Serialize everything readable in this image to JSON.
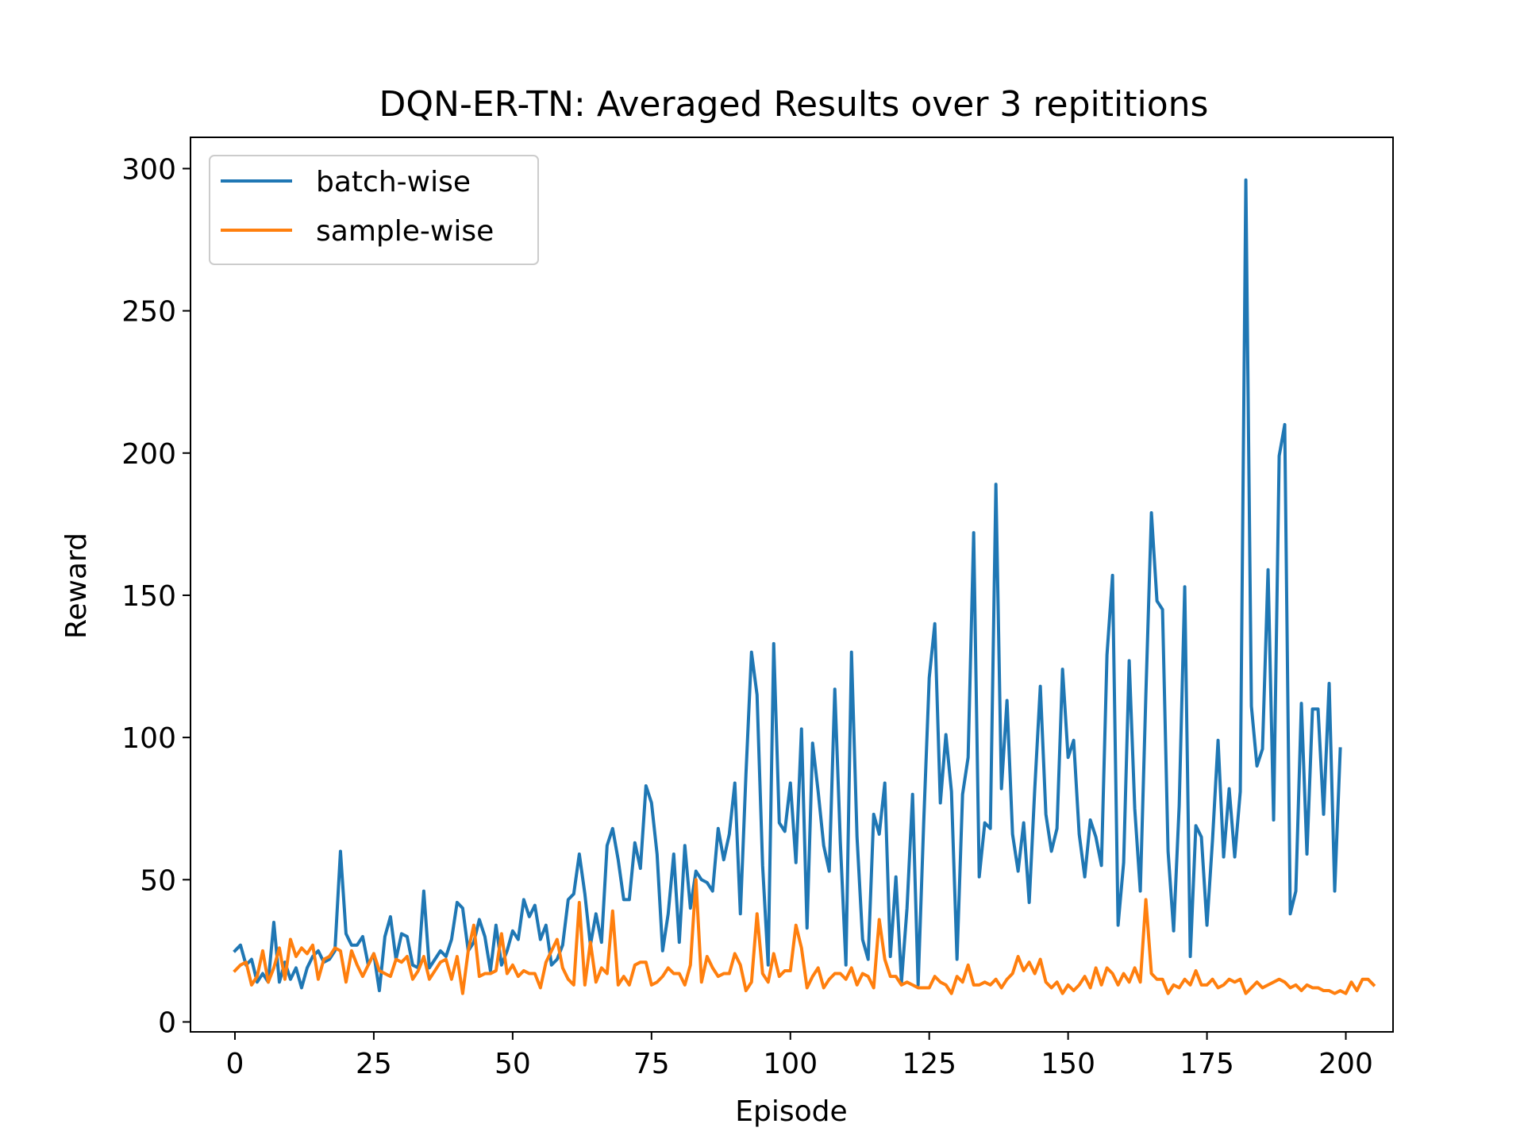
{
  "chart_data": {
    "type": "line",
    "title": "DQN-ER-TN: Averaged Results over 3 repititions",
    "xlabel": "Episode",
    "ylabel": "Reward",
    "xlim": [
      -8,
      208.5
    ],
    "ylim": [
      -3.5,
      311
    ],
    "xticks": [
      0,
      25,
      50,
      75,
      100,
      125,
      150,
      175,
      200
    ],
    "yticks": [
      0,
      50,
      100,
      150,
      200,
      250,
      300
    ],
    "grid": false,
    "legend_position": "top-left",
    "series": [
      {
        "name": "batch-wise",
        "color": "#1f77b4",
        "values": [
          25,
          27,
          20,
          22,
          14,
          17,
          14,
          35,
          14,
          21,
          15,
          19,
          12,
          19,
          23,
          25,
          21,
          22,
          25,
          60,
          31,
          27,
          27,
          30,
          20,
          24,
          11,
          30,
          37,
          22,
          31,
          30,
          20,
          19,
          46,
          19,
          22,
          25,
          23,
          29,
          42,
          40,
          25,
          28,
          36,
          30,
          18,
          34,
          20,
          25,
          32,
          29,
          43,
          37,
          41,
          29,
          34,
          20,
          22,
          27,
          43,
          45,
          59,
          45,
          27,
          38,
          28,
          62,
          68,
          57,
          43,
          43,
          63,
          54,
          83,
          77,
          59,
          25,
          38,
          59,
          28,
          62,
          40,
          53,
          50,
          49,
          46,
          68,
          57,
          66,
          84,
          38,
          87,
          130,
          115,
          55,
          20,
          133,
          70,
          67,
          84,
          56,
          103,
          33,
          98,
          81,
          62,
          53,
          117,
          63,
          20,
          130,
          65,
          29,
          22,
          73,
          66,
          84,
          23,
          51,
          14,
          40,
          80,
          13,
          70,
          121,
          140,
          77,
          101,
          81,
          22,
          80,
          93,
          172,
          51,
          70,
          68,
          189,
          82,
          113,
          66,
          53,
          70,
          42,
          82,
          118,
          73,
          60,
          68,
          124,
          93,
          99,
          66,
          51,
          71,
          65,
          55,
          129,
          157,
          34,
          56,
          127,
          75,
          46,
          115,
          179,
          148,
          145,
          60,
          32,
          76,
          153,
          23,
          69,
          65,
          34,
          64,
          99,
          58,
          82,
          58,
          81,
          296,
          111,
          90,
          96,
          159,
          71,
          199,
          210,
          38,
          46,
          112,
          59,
          110,
          110,
          73,
          119,
          46,
          96
        ]
      },
      {
        "name": "sample-wise",
        "color": "#ff7f0e",
        "values": [
          18,
          20,
          21,
          13,
          16,
          25,
          14,
          19,
          26,
          15,
          29,
          23,
          26,
          24,
          27,
          15,
          22,
          23,
          26,
          25,
          14,
          25,
          20,
          16,
          20,
          24,
          18,
          17,
          16,
          22,
          21,
          23,
          15,
          18,
          23,
          15,
          18,
          21,
          22,
          15,
          23,
          10,
          25,
          34,
          16,
          17,
          17,
          18,
          31,
          17,
          20,
          16,
          18,
          17,
          17,
          12,
          21,
          25,
          29,
          19,
          15,
          13,
          42,
          13,
          28,
          14,
          19,
          17,
          39,
          13,
          16,
          13,
          20,
          21,
          21,
          13,
          14,
          16,
          19,
          17,
          17,
          13,
          20,
          50,
          14,
          23,
          19,
          16,
          17,
          17,
          24,
          20,
          11,
          14,
          38,
          17,
          14,
          24,
          16,
          18,
          18,
          34,
          26,
          12,
          16,
          19,
          12,
          15,
          17,
          17,
          15,
          19,
          13,
          17,
          16,
          12,
          36,
          22,
          16,
          16,
          13,
          14,
          13,
          12,
          12,
          12,
          16,
          14,
          13,
          10,
          16,
          14,
          20,
          13,
          13,
          14,
          13,
          15,
          12,
          15,
          17,
          23,
          18,
          21,
          17,
          22,
          14,
          12,
          14,
          10,
          13,
          11,
          13,
          16,
          12,
          19,
          13,
          19,
          17,
          13,
          17,
          14,
          19,
          14,
          43,
          17,
          15,
          15,
          10,
          13,
          12,
          15,
          13,
          18,
          13,
          13,
          15,
          12,
          13,
          15,
          14,
          15,
          10,
          12,
          14,
          12,
          13,
          14,
          15,
          14,
          12,
          13,
          11,
          13,
          12,
          12,
          11,
          11,
          10,
          11,
          10,
          14,
          11,
          15,
          15,
          13
        ]
      }
    ]
  }
}
